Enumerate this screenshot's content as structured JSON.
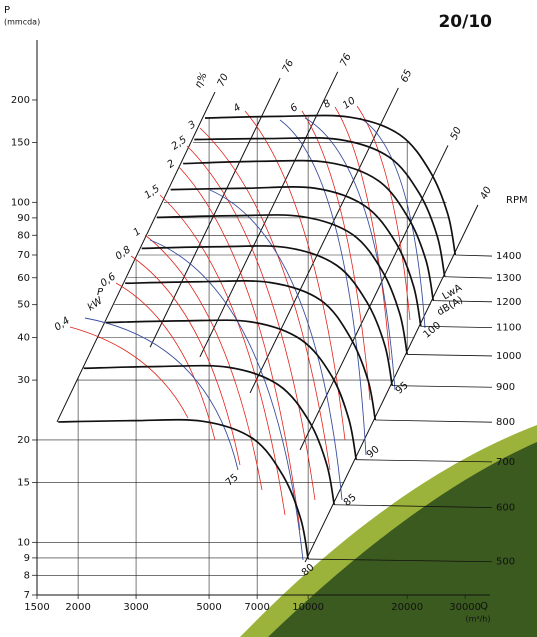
{
  "chart_data": {
    "type": "line",
    "title": "20/10",
    "y_label": "P",
    "y_unit": "(mmcda)",
    "x_label": "Q",
    "x_unit": "(m³/h)",
    "y2_label": "RPM",
    "xscale": "log",
    "yscale": "log",
    "y2scale": "log",
    "xlim": [
      1500,
      35700
    ],
    "ylim": [
      7,
      245
    ],
    "y2lim": [
      447,
      2620
    ],
    "xticks": [
      1500,
      2000,
      3000,
      5000,
      7000,
      10000,
      20000,
      30000
    ],
    "yticks": [
      7,
      8,
      9,
      10,
      15,
      20,
      30,
      40,
      50,
      60,
      70,
      80,
      90,
      100,
      150,
      200
    ],
    "y2ticks": [
      500,
      600,
      700,
      800,
      900,
      1000,
      1100,
      1200,
      1300,
      1400
    ],
    "grid": true,
    "color": "#111111",
    "series": [
      {
        "x": [
          1740,
          2940,
          4790,
          6790,
          8390,
          9500,
          10000
        ],
        "values": [
          22.6,
          22.8,
          22.7,
          20.2,
          15.7,
          11.7,
          8.93
        ]
      },
      {
        "x": [
          2080,
          3520,
          5740,
          8140,
          10100,
          11400,
          12000
        ],
        "values": [
          32.5,
          32.9,
          32.7,
          29.0,
          22.6,
          16.9,
          12.9
        ]
      },
      {
        "x": [
          2430,
          4110,
          6700,
          9500,
          11800,
          13300,
          14000
        ],
        "values": [
          44.3,
          44.8,
          44.5,
          39.5,
          30.8,
          23.0,
          17.5
        ]
      },
      {
        "x": [
          2780,
          4700,
          7660,
          10900,
          13400,
          15200,
          16000
        ],
        "values": [
          57.8,
          58.4,
          58.1,
          51.6,
          40.2,
          30.0,
          22.9
        ]
      },
      {
        "x": [
          3120,
          5280,
          8610,
          12200,
          15100,
          17100,
          18000
        ],
        "values": [
          73.2,
          74.0,
          73.6,
          65.3,
          50.8,
          38.0,
          28.9
        ]
      },
      {
        "x": [
          3470,
          5870,
          9570,
          13600,
          16800,
          19000,
          20000
        ],
        "values": [
          90.3,
          91.3,
          90.8,
          80.6,
          62.8,
          46.9,
          35.7
        ]
      },
      {
        "x": [
          3820,
          6460,
          10500,
          14900,
          18500,
          20900,
          22000
        ],
        "values": [
          109,
          110,
          110,
          97.5,
          75.9,
          56.8,
          43.2
        ]
      },
      {
        "x": [
          4170,
          7050,
          11500,
          16300,
          20100,
          22800,
          24000
        ],
        "values": [
          130,
          132,
          131,
          116,
          90.4,
          67.6,
          51.4
        ]
      },
      {
        "x": [
          4510,
          7630,
          12400,
          17600,
          21800,
          24700,
          26000
        ],
        "values": [
          153,
          154,
          153,
          136,
          106,
          79.3,
          60.4
        ]
      },
      {
        "x": [
          4860,
          8220,
          13400,
          19000,
          23500,
          26600,
          28000
        ],
        "values": [
          177,
          179,
          178,
          158,
          123,
          92,
          70
        ]
      }
    ],
    "efficiency_title": "η%",
    "efficiency_lines": [
      {
        "label": "70",
        "x": [
          1725,
          5210
        ],
        "values": [
          22.6,
          211
        ]
      },
      {
        "label": "76",
        "x": [
          3310,
          8220
        ],
        "values": [
          37.5,
          232
        ]
      },
      {
        "label": "76",
        "x": [
          4690,
          12300
        ],
        "values": [
          35.1,
          242
        ]
      },
      {
        "label": "65",
        "x": [
          6660,
          18800
        ],
        "values": [
          27.5,
          217
        ]
      },
      {
        "label": "50",
        "x": [
          9450,
          26600
        ],
        "values": [
          18.7,
          147
        ]
      },
      {
        "label": "40",
        "x": [
          9790,
          32800
        ],
        "values": [
          8.75,
          98.2
        ]
      }
    ],
    "power_title": "P",
    "power_unit": "kW",
    "power_color": "#e2231a",
    "power_labels": [
      "0,4",
      "0,6",
      "0,8",
      "1",
      "1,5",
      "2",
      "2,5",
      "3",
      "4",
      "6",
      "8",
      "10"
    ],
    "sound_title": "LwA",
    "sound_unit": "dB(A)",
    "sound_color": "#3a4fa0",
    "sound_labels": [
      "75",
      "80",
      "85",
      "90",
      "95",
      "100"
    ]
  }
}
